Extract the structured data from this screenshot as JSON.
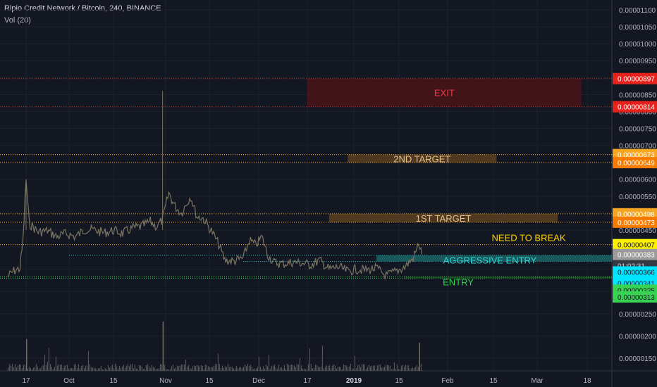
{
  "header": {
    "title": "Ripio Credit Network / Bitcoin, 240, BINANCE",
    "indicator": "Vol (20)"
  },
  "colors": {
    "background": "#131722",
    "grid": "#1e222d",
    "candle": "#7a7462",
    "volume": "#7a6e58",
    "exit_fill": "#4a1419",
    "exit_text": "#f23645",
    "exit_line": "#d32f2f",
    "target_fill": "#5a4020",
    "target_text": "#e6c28a",
    "target_line": "#f5a623",
    "break_line": "#f5a623",
    "break_text": "#ffd200",
    "aggr_fill": "#1d6a6a",
    "aggr_text": "#2ad8d8",
    "aggr_line": "#27c5c5",
    "entry_fill": "#1b5a25",
    "entry_text": "#2ad94a",
    "entry_line": "#39d353"
  },
  "chart_data": {
    "type": "candlestick",
    "title": "Ripio Credit Network / Bitcoin, 240, BINANCE",
    "y_axis": {
      "range": [
        1.2e-06,
        1.12e-06
      ],
      "log": true,
      "tick_labels": [
        "0.00001100",
        "0.00001050",
        "0.00001000",
        "0.00000950",
        "0.00000900",
        "0.00000850",
        "0.00000800",
        "0.00000750",
        "0.00000700",
        "0.00000650",
        "0.00000600",
        "0.00000550",
        "0.00000500",
        "0.00000450",
        "0.00000400",
        "0.00000350",
        "0.00000300",
        "0.00000250",
        "0.00000200",
        "0.00000150"
      ],
      "tick_values": [
        1.1e-05,
        1.05e-05,
        1e-05,
        9.5e-06,
        9e-06,
        8.5e-06,
        8e-06,
        7.5e-06,
        7e-06,
        6.5e-06,
        6e-06,
        5.5e-06,
        5e-06,
        4.5e-06,
        4e-06,
        3.5e-06,
        3e-06,
        2.5e-06,
        2e-06,
        1.5e-06
      ]
    },
    "x_axis": {
      "tick_labels": [
        "17",
        "Oct",
        "15",
        "Nov",
        "15",
        "Dec",
        "17",
        "2019",
        "15",
        "Feb",
        "15",
        "Mar",
        "18"
      ],
      "tick_dates": [
        "2018-09-17",
        "2018-10-01",
        "2018-10-15",
        "2018-11-01",
        "2018-11-15",
        "2018-12-01",
        "2018-12-17",
        "2019-01-01",
        "2019-01-15",
        "2019-02-01",
        "2019-02-15",
        "2019-03-01",
        "2019-03-18"
      ]
    },
    "price_series": [
      [
        "2018-09-11",
        3.33e-06
      ],
      [
        "2018-09-13",
        3.46e-06
      ],
      [
        "2018-09-15",
        3.52e-06
      ],
      [
        "2018-09-16",
        4.2e-06
      ],
      [
        "2018-09-17",
        6e-06
      ],
      [
        "2018-09-18",
        4.7e-06
      ],
      [
        "2018-09-21",
        4.44e-06
      ],
      [
        "2018-09-24",
        4.48e-06
      ],
      [
        "2018-09-27",
        4.3e-06
      ],
      [
        "2018-09-30",
        4.4e-06
      ],
      [
        "2018-10-03",
        4.3e-06
      ],
      [
        "2018-10-06",
        4.52e-06
      ],
      [
        "2018-10-09",
        4.5e-06
      ],
      [
        "2018-10-12",
        4.42e-06
      ],
      [
        "2018-10-15",
        4.49e-06
      ],
      [
        "2018-10-18",
        4.4e-06
      ],
      [
        "2018-10-21",
        4.55e-06
      ],
      [
        "2018-10-24",
        4.6e-06
      ],
      [
        "2018-10-27",
        4.75e-06
      ],
      [
        "2018-10-29",
        4.6e-06
      ],
      [
        "2018-10-31",
        4.8e-06
      ],
      [
        "2018-11-02",
        5.6e-06
      ],
      [
        "2018-11-04",
        5.2e-06
      ],
      [
        "2018-11-06",
        5e-06
      ],
      [
        "2018-11-09",
        5.5e-06
      ],
      [
        "2018-11-11",
        4.9e-06
      ],
      [
        "2018-11-13",
        4.85e-06
      ],
      [
        "2018-11-16",
        4.42e-06
      ],
      [
        "2018-11-18",
        4.08e-06
      ],
      [
        "2018-11-20",
        3.7e-06
      ],
      [
        "2018-11-23",
        3.68e-06
      ],
      [
        "2018-11-26",
        3.75e-06
      ],
      [
        "2018-11-28",
        4.2e-06
      ],
      [
        "2018-11-30",
        4.05e-06
      ],
      [
        "2018-12-02",
        4.3e-06
      ],
      [
        "2018-12-04",
        3.82e-06
      ],
      [
        "2018-12-06",
        3.65e-06
      ],
      [
        "2018-12-09",
        3.62e-06
      ],
      [
        "2018-12-12",
        3.66e-06
      ],
      [
        "2018-12-15",
        3.64e-06
      ],
      [
        "2018-12-18",
        3.6e-06
      ],
      [
        "2018-12-21",
        3.7e-06
      ],
      [
        "2018-12-24",
        3.5e-06
      ],
      [
        "2018-12-27",
        3.55e-06
      ],
      [
        "2018-12-30",
        3.45e-06
      ],
      [
        "2019-01-02",
        3.5e-06
      ],
      [
        "2019-01-05",
        3.48e-06
      ],
      [
        "2019-01-08",
        3.52e-06
      ],
      [
        "2019-01-11",
        3.35e-06
      ],
      [
        "2019-01-14",
        3.45e-06
      ],
      [
        "2019-01-17",
        3.55e-06
      ],
      [
        "2019-01-20",
        3.75e-06
      ],
      [
        "2019-01-22",
        4.1e-06
      ],
      [
        "2019-01-23",
        3.83e-06
      ]
    ],
    "spikes": [
      [
        "2018-10-31",
        8.6e-06
      ],
      [
        "2018-09-17",
        6e-06
      ]
    ],
    "volume_bars": "small bars along the bottom with a large spike near 2018-10-31",
    "levels": [
      {
        "name": "EXIT",
        "top": 8.97e-06,
        "bottom": 8.14e-06,
        "top_label": "0.00000897",
        "bottom_label": "0.00000814",
        "from": "2018-12-17",
        "to": "2019-03-16"
      },
      {
        "name": "2ND TARGET",
        "top": 6.73e-06,
        "bottom": 6.49e-06,
        "top_label": "0.00000673",
        "bottom_label": "0.00000649",
        "from": "2018-12-30",
        "to": "2019-02-16"
      },
      {
        "name": "1ST TARGET",
        "top": 4.98e-06,
        "bottom": 4.73e-06,
        "top_label": "0.00000498",
        "bottom_label": "0.00000473",
        "from": "2018-12-24",
        "to": "2019-03-08"
      },
      {
        "name": "NEED TO BREAK",
        "value": 4.07e-06,
        "label": "0.00000407"
      },
      {
        "name": "AGGRESSIVE ENTRY",
        "top": 3.83e-06,
        "bottom": 3.66e-06,
        "top_label": "0.00000383",
        "bottom_label": "0.00000366",
        "line_from": "2018-10-01",
        "box_from": "2019-01-08"
      },
      {
        "name": "ENTRY",
        "top": 3.41e-06,
        "bottom": 3.25e-06,
        "top_label": "0.00000341",
        "bottom_label": "0.00000325",
        "extra_label": "0.00000313",
        "box_from": "2019-01-17"
      }
    ],
    "countdown": "01:02:31"
  },
  "annotations": {
    "exit": "EXIT",
    "target2": "2ND TARGET",
    "target1": "1ST TARGET",
    "need_to_break": "NEED TO BREAK",
    "aggressive_entry": "AGGRESSIVE ENTRY",
    "entry": "ENTRY"
  },
  "price_labels": {
    "exit_top": "0.00000897",
    "exit_bottom": "0.00000814",
    "t2_top": "0.00000673",
    "t2_bottom": "0.00000649",
    "t1_top": "0.00000498",
    "t1_bottom": "0.00000473",
    "break": "0.00000407",
    "current": "0.00000383",
    "countdown": "01:02:31",
    "aggr_bottom": "0.00000366",
    "entry_top": "0.00000341",
    "entry_bottom": "0.00000325",
    "entry_low": "0.00000313"
  }
}
